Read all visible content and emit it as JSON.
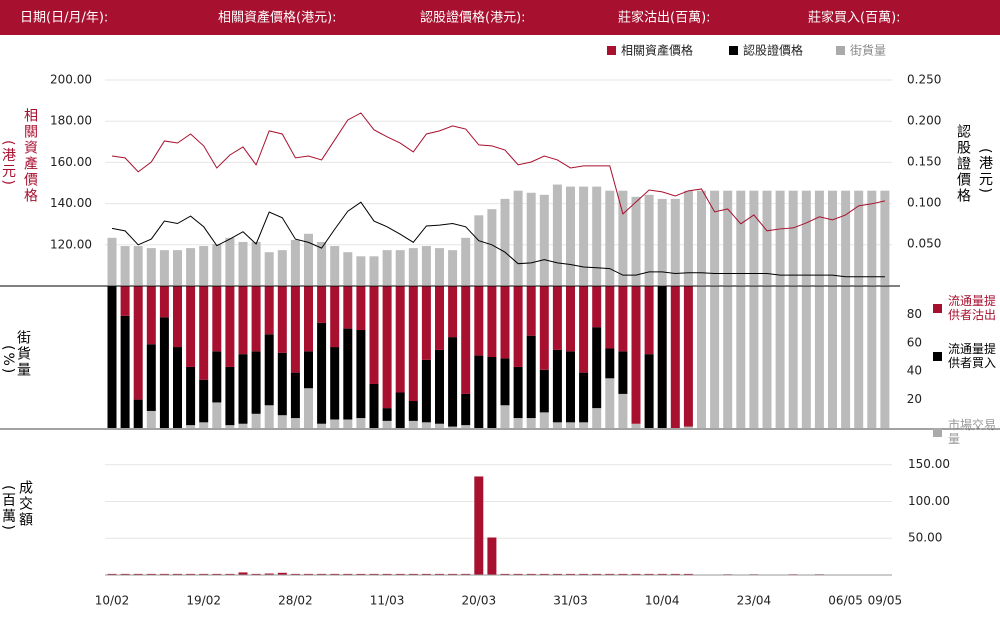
{
  "header": {
    "fields": [
      "日期(日/月/年):",
      "相關資產價格(港元):",
      "認股證價格(港元):",
      "莊家沽出(百萬):",
      "莊家買入(百萬):"
    ]
  },
  "chart_data": [
    {
      "type": "line",
      "y_label": "相關資產價格",
      "y_unit": "(港元)",
      "y2_label": "認股證價格",
      "y2_unit": "(港元)",
      "series": [
        {
          "name": "相關資產價格",
          "color": "#a8102f",
          "axis": "y",
          "values": [
            163.1,
            162.2,
            155.4,
            160.2,
            170.4,
            169.4,
            173.8,
            168,
            157.3,
            163.6,
            167.5,
            158.8,
            175.3,
            173.8,
            162.2,
            163.1,
            161.2,
            170.9,
            180.6,
            184,
            175.8,
            172.4,
            169.4,
            165.1,
            173.8,
            175.3,
            177.7,
            176.2,
            168.5,
            168,
            166,
            158.8,
            160.2,
            163.1,
            161.2,
            157.3,
            158.3,
            158.3,
            158.3,
            135,
            140.8,
            146.6,
            145.7,
            143.7,
            146.2,
            147.1,
            136,
            137.4,
            130.2,
            134.5,
            126.8,
            127.7,
            128.2,
            130.6,
            133.6,
            132.1,
            134.5,
            138.9,
            139.9,
            141.3
          ]
        },
        {
          "name": "認股證價格",
          "color": "#000000",
          "axis": "y2",
          "values": [
            0.069,
            0.066,
            0.049,
            0.056,
            0.078,
            0.075,
            0.084,
            0.071,
            0.048,
            0.056,
            0.065,
            0.05,
            0.089,
            0.082,
            0.056,
            0.052,
            0.045,
            0.068,
            0.09,
            0.101,
            0.078,
            0.071,
            0.062,
            0.052,
            0.072,
            0.073,
            0.075,
            0.071,
            0.054,
            0.049,
            0.04,
            0.026,
            0.027,
            0.031,
            0.027,
            0.025,
            0.022,
            0.021,
            0.02,
            0.012,
            0.012,
            0.016,
            0.016,
            0.014,
            0.015,
            0.015,
            0.014,
            0.014,
            0.014,
            0.014,
            0.014,
            0.012,
            0.012,
            0.012,
            0.012,
            0.012,
            0.01,
            0.01,
            0.01,
            0.01
          ]
        },
        {
          "name": "街貨量",
          "color": "#bbbbbb",
          "axis": "y3",
          "values": [
            23,
            19,
            19,
            18,
            17,
            17,
            18,
            19,
            20,
            23,
            21,
            21,
            16,
            17,
            22,
            25,
            21,
            19,
            16,
            14,
            14,
            17,
            17,
            18,
            19,
            18,
            17,
            23,
            34,
            37,
            42,
            46,
            45,
            44,
            49,
            48,
            48,
            48,
            46,
            46,
            43,
            44,
            42,
            42,
            46,
            46,
            46,
            46,
            46,
            46,
            46,
            46,
            46,
            46,
            46,
            46,
            46,
            46,
            46,
            46
          ]
        }
      ],
      "ylim": [
        100,
        200
      ],
      "yticks": [
        {
          "value": 120,
          "label": "120.00"
        },
        {
          "value": 140,
          "label": "140.00"
        },
        {
          "value": 160,
          "label": "160.00"
        },
        {
          "value": 180,
          "label": "180.00"
        },
        {
          "value": 200,
          "label": "200.00"
        }
      ],
      "y2lim": [
        0,
        0.25
      ],
      "y2ticks": [
        {
          "value": 0.05,
          "label": "0.050"
        },
        {
          "value": 0.1,
          "label": "0.100"
        },
        {
          "value": 0.15,
          "label": "0.150"
        },
        {
          "value": 0.2,
          "label": "0.200"
        },
        {
          "value": 0.25,
          "label": "0.250"
        }
      ],
      "y3lim": [
        0,
        100
      ],
      "grid": true
    },
    {
      "type": "stacked_bar",
      "y_label": "街貨量",
      "y_unit": "(%)",
      "series": [
        {
          "name": "流通量提供者沽出",
          "color": "#a8102f",
          "values": [
            0,
            21,
            80,
            41,
            22,
            43,
            57,
            66,
            46,
            57,
            48,
            46,
            34,
            47,
            61,
            46,
            26,
            43,
            30,
            31,
            69,
            86,
            75,
            81,
            52,
            45,
            36,
            76,
            49,
            50,
            51,
            57,
            35,
            59,
            45,
            46,
            61,
            29,
            44,
            46,
            97,
            48,
            0,
            100,
            99,
            0,
            0,
            0,
            0,
            0,
            0,
            0,
            0,
            0,
            0,
            0,
            0,
            0,
            0,
            0
          ]
        },
        {
          "name": "流通量提供者買入",
          "color": "#000000",
          "values": [
            100,
            79,
            20,
            47,
            78,
            57,
            41,
            30,
            36,
            41,
            49,
            44,
            50,
            44,
            32,
            26,
            71,
            51,
            64,
            62,
            31,
            9,
            25,
            14,
            44,
            52,
            63,
            22,
            51,
            50,
            33,
            36,
            58,
            30,
            51,
            50,
            35,
            57,
            21,
            30,
            0,
            52,
            100,
            0,
            0,
            0,
            0,
            0,
            0,
            0,
            0,
            0,
            0,
            0,
            0,
            0,
            0,
            0,
            0,
            0
          ]
        },
        {
          "name": "市場交易量",
          "color": "#bbbbbb",
          "values": [
            0,
            0,
            0,
            12,
            0,
            0,
            2,
            4,
            18,
            2,
            3,
            10,
            16,
            9,
            7,
            28,
            3,
            6,
            6,
            7,
            0,
            5,
            0,
            5,
            4,
            3,
            1,
            2,
            0,
            0,
            16,
            7,
            7,
            11,
            4,
            4,
            4,
            14,
            35,
            24,
            3,
            0,
            0,
            0,
            1,
            100,
            100,
            100,
            100,
            100,
            100,
            100,
            100,
            100,
            100,
            100,
            100,
            100,
            100,
            100
          ]
        }
      ],
      "ylim": [
        0,
        100
      ],
      "yticks": [
        20,
        40,
        60,
        80
      ]
    },
    {
      "type": "bar",
      "y_label": "成交額",
      "y_unit": "(百萬)",
      "categories": [
        "10/02",
        null,
        null,
        null,
        null,
        null,
        null,
        "19/02",
        null,
        null,
        null,
        null,
        null,
        null,
        "28/02",
        null,
        null,
        null,
        null,
        null,
        null,
        "11/03",
        null,
        null,
        null,
        null,
        null,
        null,
        "20/03",
        null,
        null,
        null,
        null,
        null,
        null,
        "31/03",
        null,
        null,
        null,
        null,
        null,
        null,
        "10/04",
        null,
        null,
        null,
        null,
        null,
        null,
        "23/04",
        null,
        null,
        null,
        null,
        null,
        null,
        "06/05",
        null,
        null,
        "09/05"
      ],
      "color": "#a8102f",
      "values": [
        1.5,
        1.5,
        1.5,
        1.5,
        1.5,
        1.5,
        1.5,
        1.5,
        1.5,
        1.5,
        3.5,
        1.5,
        2,
        3,
        1.5,
        1.5,
        1.5,
        1.5,
        1.5,
        1.5,
        1.5,
        1.5,
        1.5,
        1.5,
        1.5,
        1.5,
        1.5,
        1.5,
        134,
        51,
        1.5,
        1.5,
        1.5,
        1.5,
        1.5,
        1.5,
        1.5,
        1.5,
        1.5,
        1.5,
        1.5,
        1.5,
        1.5,
        1.5,
        1.5,
        0,
        0,
        1,
        0,
        1,
        0,
        0,
        1,
        0,
        1,
        0,
        0,
        0,
        0,
        0
      ],
      "ylim": [
        0,
        170
      ],
      "yticks": [
        {
          "value": 50,
          "label": "50.00"
        },
        {
          "value": 100,
          "label": "100.00"
        },
        {
          "value": 150,
          "label": "150.00"
        }
      ],
      "grid": true
    }
  ]
}
